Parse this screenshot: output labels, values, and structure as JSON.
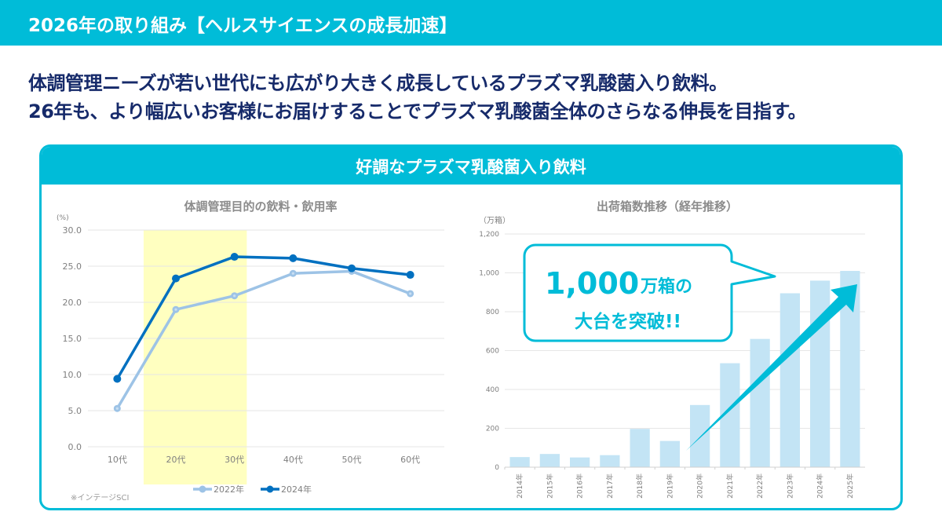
{
  "header": {
    "title": "2026年の取り組み【ヘルスサイエンスの成長加速】"
  },
  "headline": {
    "line1": "体調管理ニーズが若い世代にも広がり大きく成長しているプラズマ乳酸菌入り飲料。",
    "line2": "26年も、より幅広いお客様にお届けすることでプラズマ乳酸菌全体のさらなる伸長を目指す。"
  },
  "panel": {
    "title": "好調なプラズマ乳酸菌入り飲料"
  },
  "colors": {
    "brand": "#00bcd8",
    "headline": "#162a6a",
    "series_2022": "#9dc3e6",
    "series_2024": "#0070c0",
    "highlight": "#ffffc0",
    "bar": "#c3e4f5",
    "grid": "#e6e6e6",
    "axis_text": "#7f7f7f"
  },
  "chart_data": [
    {
      "type": "line",
      "title": "体調管理目的の飲料・飲用率",
      "ylabel": "(%)",
      "xlabel": "",
      "categories": [
        "10代",
        "20代",
        "30代",
        "40代",
        "50代",
        "60代"
      ],
      "ylim": [
        0,
        30
      ],
      "yticks": [
        "0.0",
        "5.0",
        "10.0",
        "15.0",
        "20.0",
        "25.0",
        "30.0"
      ],
      "grid": true,
      "highlight_categories": [
        "20代",
        "30代"
      ],
      "series": [
        {
          "name": "2022年",
          "values": [
            5.3,
            19.0,
            20.9,
            24.0,
            24.3,
            21.2
          ]
        },
        {
          "name": "2024年",
          "values": [
            9.4,
            23.3,
            26.3,
            26.1,
            24.7,
            23.8
          ]
        }
      ],
      "legend": "bottom-center",
      "source_note": "※インテージSCI"
    },
    {
      "type": "bar",
      "title": "出荷箱数推移（経年推移）",
      "ylabel": "（万箱）",
      "xlabel": "",
      "categories": [
        "2014年",
        "2015年",
        "2016年",
        "2017年",
        "2018年",
        "2019年",
        "2020年",
        "2021年",
        "2022年",
        "2023年",
        "2024年",
        "2025年"
      ],
      "values": [
        52,
        68,
        50,
        62,
        197,
        135,
        320,
        535,
        660,
        895,
        960,
        1010
      ],
      "ylim": [
        0,
        1200
      ],
      "yticks": [
        "0",
        "200",
        "400",
        "600",
        "800",
        "1,000",
        "1,200"
      ],
      "grid": true,
      "annotation": {
        "callout_big": "1,000",
        "callout_unit": "万箱の",
        "callout_line2": "大台を突破!!",
        "arrow": "trend-up"
      }
    }
  ]
}
